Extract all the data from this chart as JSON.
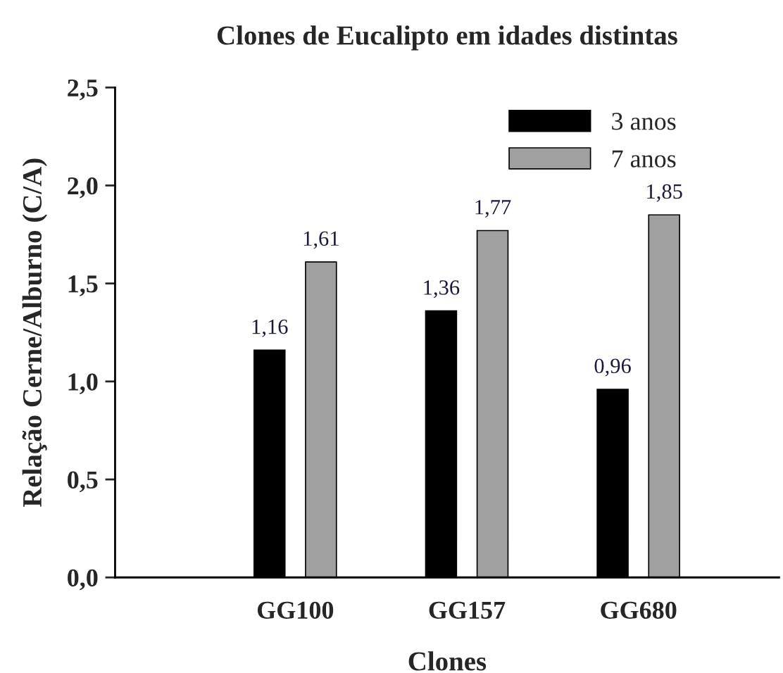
{
  "chart_data": {
    "type": "bar",
    "title": "Clones de Eucalipto em idades distintas",
    "xlabel": "Clones",
    "ylabel": "Relação Cerne/Alburno (C/A)",
    "categories": [
      "GG100",
      "GG157",
      "GG680"
    ],
    "series": [
      {
        "name": "3 anos",
        "color": "#000000",
        "values": [
          1.16,
          1.36,
          0.96
        ],
        "value_labels": [
          "1,16",
          "1,36",
          "0,96"
        ]
      },
      {
        "name": "7 anos",
        "color": "#a0a0a0",
        "values": [
          1.61,
          1.77,
          1.85
        ],
        "value_labels": [
          "1,61",
          "1,77",
          "1,85"
        ]
      }
    ],
    "ylim": [
      0,
      2.5
    ],
    "yticks": [
      {
        "value": 0,
        "label": "0,0"
      },
      {
        "value": 0.5,
        "label": "0,5"
      },
      {
        "value": 1.0,
        "label": "1,0"
      },
      {
        "value": 1.5,
        "label": "1,5"
      },
      {
        "value": 2.0,
        "label": "2,0"
      },
      {
        "value": 2.5,
        "label": "2,5"
      }
    ],
    "legend": "top right",
    "grid": false
  }
}
